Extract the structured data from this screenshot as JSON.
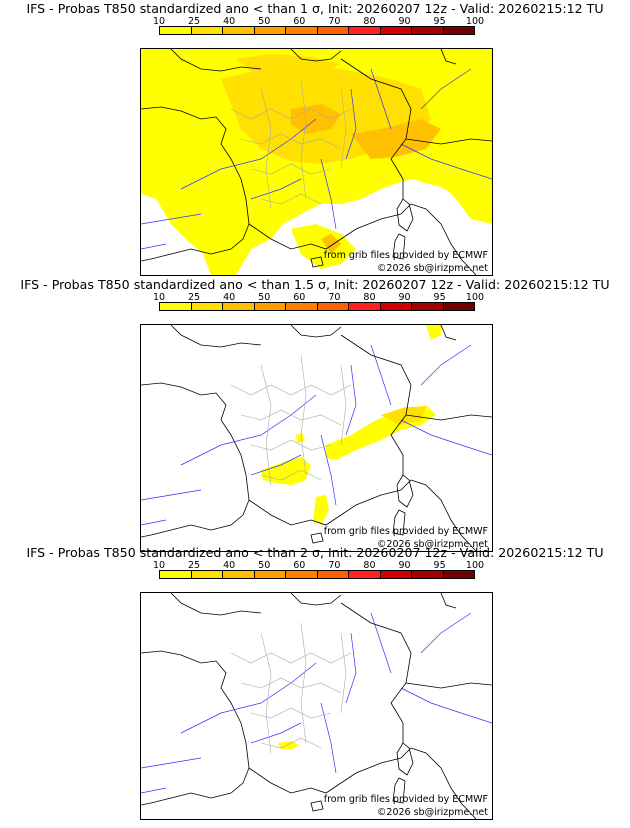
{
  "colors": {
    "scale": [
      "#ffff00",
      "#ffe000",
      "#ffc000",
      "#ffa000",
      "#ff8000",
      "#ff6000",
      "#ff2020",
      "#d00000",
      "#a00000",
      "#700000"
    ],
    "coast": "#000000",
    "rivers": "#3333ff",
    "borders": "#aaaaaa"
  },
  "colorbar": {
    "ticks": [
      "10",
      "25",
      "40",
      "50",
      "60",
      "70",
      "80",
      "90",
      "95",
      "100"
    ]
  },
  "panels": [
    {
      "title": "IFS - Probas T850  standardized ano < than 1 σ, Init: 20260207 12z - Valid: 20260215:12 TU",
      "source": "from grib files provided by ECMWF",
      "copyright": "©2026 sb@irizpme.net",
      "coverage": "widespread"
    },
    {
      "title": "IFS - Probas T850  standardized ano < than 1.5 σ, Init: 20260207 12z - Valid: 20260215:12 TU",
      "source": "from grib files provided by ECMWF",
      "copyright": "©2026 sb@irizpme.net",
      "coverage": "scattered"
    },
    {
      "title": "IFS - Probas T850  standardized ano < than 2 σ, Init: 20260207 12z - Valid: 20260215:12 TU",
      "source": "from grib files provided by ECMWF",
      "copyright": "©2026 sb@irizpme.net",
      "coverage": "minimal"
    }
  ]
}
